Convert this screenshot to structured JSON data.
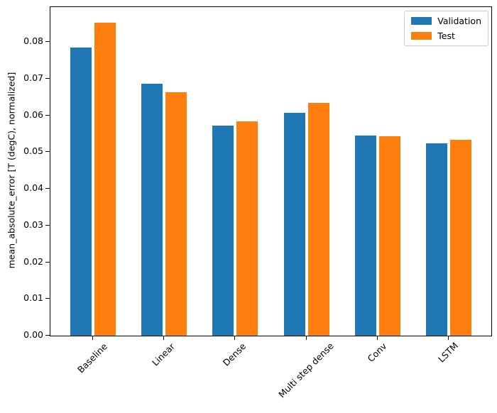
{
  "chart_data": {
    "type": "bar",
    "title": "",
    "xlabel": "",
    "ylabel": "mean_absolute_error [T (degC), normalized]",
    "categories": [
      "Baseline",
      "Linear",
      "Dense",
      "Multi step dense",
      "Conv",
      "LSTM"
    ],
    "series": [
      {
        "name": "Validation",
        "color": "#1f77b4",
        "values": [
          0.0785,
          0.0687,
          0.0573,
          0.0607,
          0.0545,
          0.0524
        ]
      },
      {
        "name": "Test",
        "color": "#ff7f0e",
        "values": [
          0.0852,
          0.0663,
          0.0583,
          0.0634,
          0.0543,
          0.0533
        ]
      }
    ],
    "ylim": [
      0,
      0.0895
    ],
    "xlim": [
      -0.602,
      5.602
    ],
    "yticks": [
      0.0,
      0.01,
      0.02,
      0.03,
      0.04,
      0.05,
      0.06,
      0.07,
      0.08
    ],
    "ytick_labels": [
      "0.00",
      "0.01",
      "0.02",
      "0.03",
      "0.04",
      "0.05",
      "0.06",
      "0.07",
      "0.08"
    ],
    "bar_width_units": 0.3,
    "bar_offset_units": 0.17,
    "x_tick_rotation_deg": 45,
    "grid": false,
    "legend_position": "upper right",
    "spine_color": "#000000",
    "legend_border_color": "#cccccc",
    "background_color": "#ffffff"
  }
}
